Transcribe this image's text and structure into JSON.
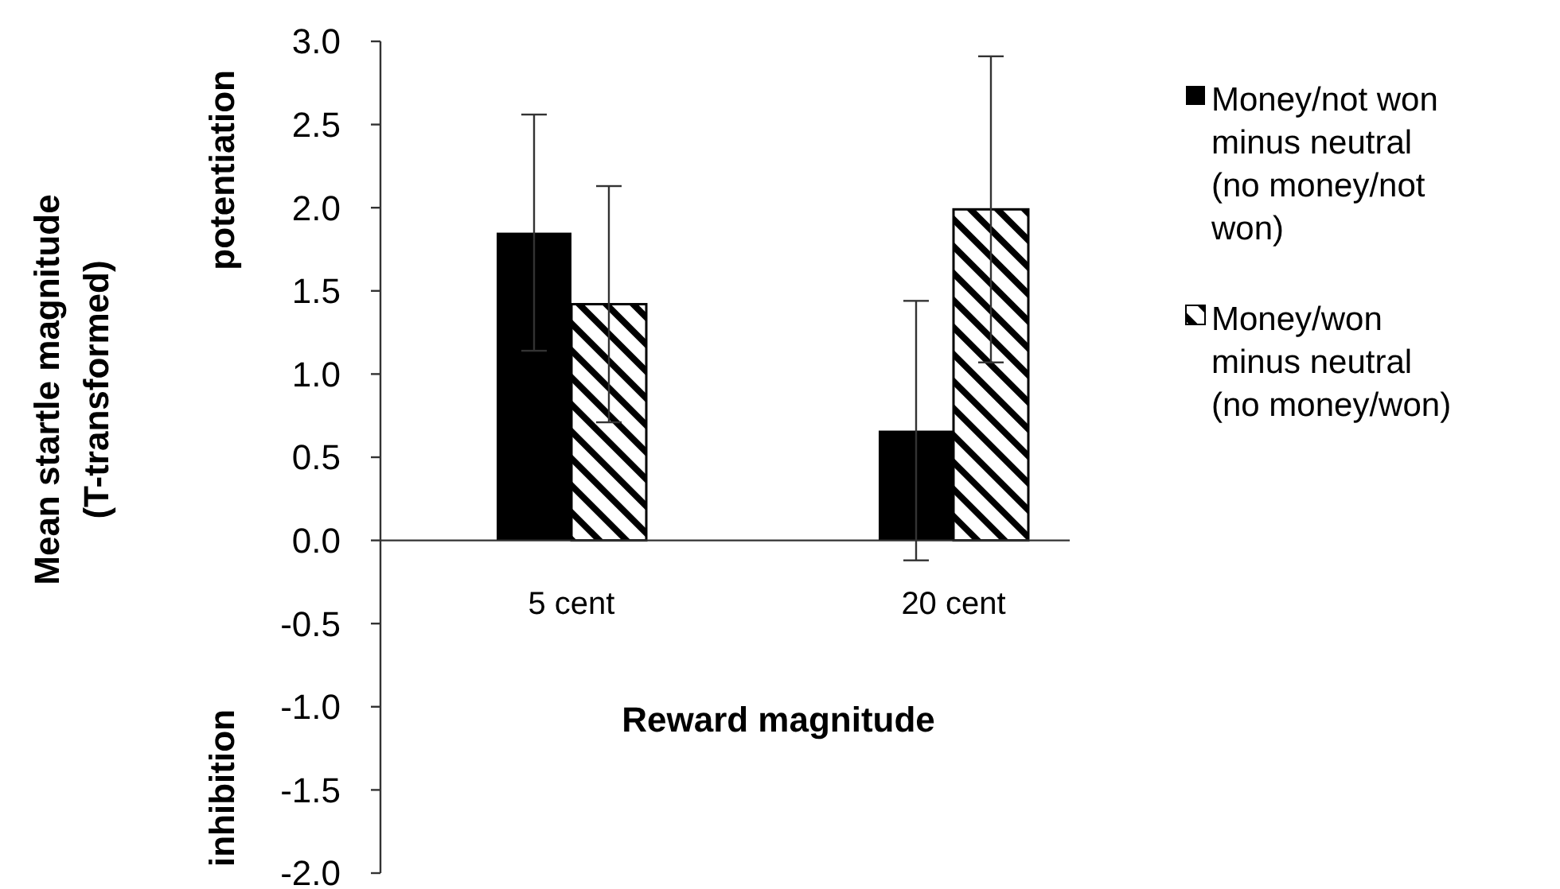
{
  "chart_data": {
    "type": "bar",
    "xlabel": "Reward magnitude",
    "ylabel": "Mean startle magnitude\n(T-transformed)",
    "categories": [
      "5 cent",
      "20 cent"
    ],
    "series": [
      {
        "name": "Money/not won minus neutral (no money/not won)",
        "color": "#000000",
        "values": [
          1.85,
          0.66
        ],
        "errors": [
          0.71,
          0.78
        ]
      },
      {
        "name": "Money/won minus neutral (no money/won)",
        "color": "#000000",
        "values": [
          1.42,
          1.99
        ],
        "errors": [
          0.71,
          0.92
        ]
      }
    ],
    "ylim": [
      -2,
      3
    ],
    "yticks": [
      {
        "value": -2,
        "label": "-2.0"
      },
      {
        "value": -1.5,
        "label": "-1.5"
      },
      {
        "value": -1,
        "label": "-1.0"
      },
      {
        "value": -0.5,
        "label": "-0.5"
      },
      {
        "value": 0,
        "label": "0.0"
      },
      {
        "value": 0.5,
        "label": "0.5"
      },
      {
        "value": 1,
        "label": "1.0"
      },
      {
        "value": 1.5,
        "label": "1.5"
      },
      {
        "value": 2,
        "label": "2.0"
      },
      {
        "value": 2.5,
        "label": "2.5"
      },
      {
        "value": 3,
        "label": "3.0"
      }
    ],
    "annotations": [
      "potentiation",
      "inhibition"
    ],
    "grid": false,
    "legend": "right"
  }
}
